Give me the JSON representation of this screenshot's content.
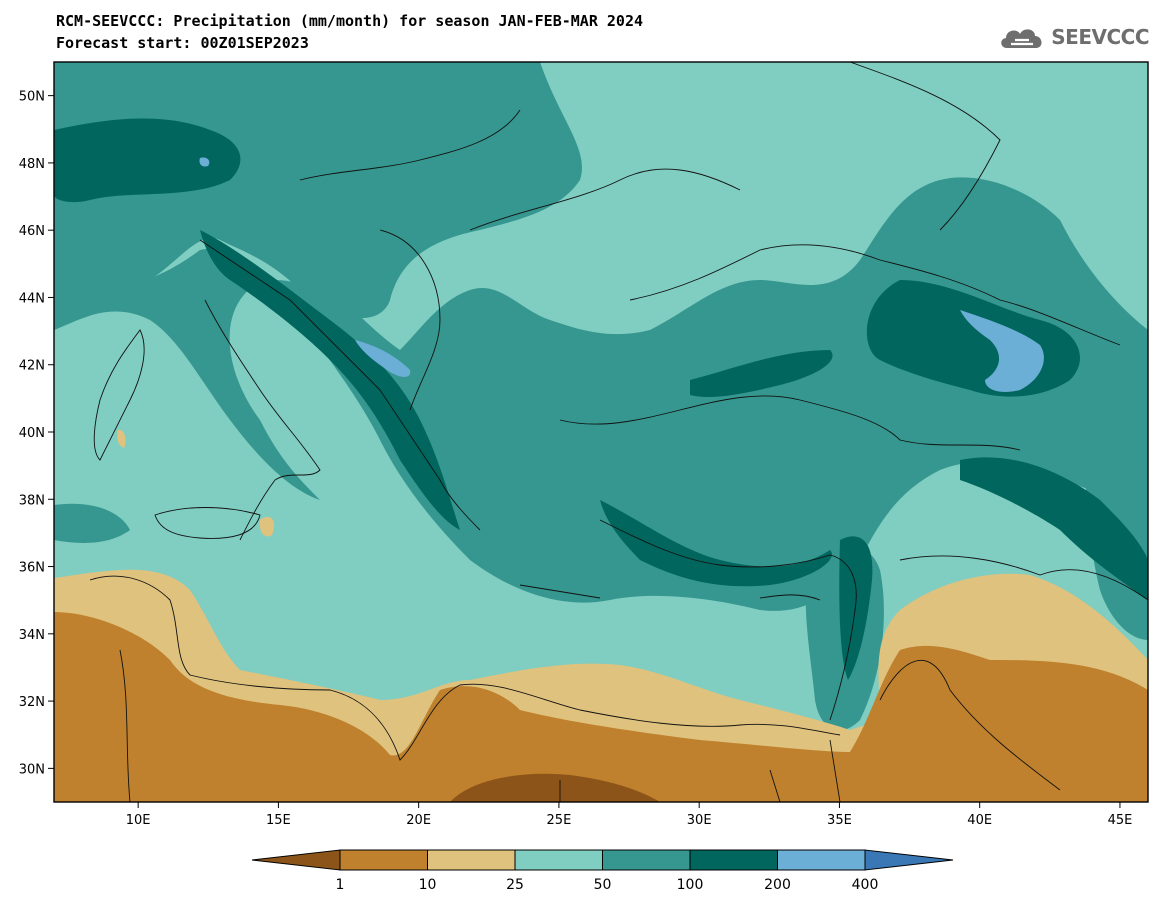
{
  "header": {
    "title_line1": "RCM-SEEVCCC: Precipitation (mm/month) for season JAN-FEB-MAR 2024",
    "title_line2": "Forecast start: 00Z01SEP2023"
  },
  "logo": {
    "text": "SEEVCCC",
    "icon": "cloud-icon"
  },
  "map": {
    "variable": "Precipitation",
    "units": "mm/month",
    "season": "JAN-FEB-MAR 2024",
    "forecast_start": "00Z01SEP2023",
    "lon_range": [
      7,
      46
    ],
    "lat_range": [
      29,
      51
    ],
    "lat_ticks": [
      "50N",
      "48N",
      "46N",
      "44N",
      "42N",
      "40N",
      "38N",
      "36N",
      "34N",
      "32N",
      "30N"
    ],
    "lon_ticks": [
      "10E",
      "15E",
      "20E",
      "25E",
      "30E",
      "35E",
      "40E",
      "45E"
    ]
  },
  "colorbar": {
    "levels": [
      "1",
      "10",
      "25",
      "50",
      "100",
      "200",
      "400"
    ],
    "colors": [
      "#8c5418",
      "#bf812d",
      "#dfc27d",
      "#80cdc1",
      "#35978f",
      "#01665e",
      "#6baed6",
      "#3a78b5"
    ]
  }
}
